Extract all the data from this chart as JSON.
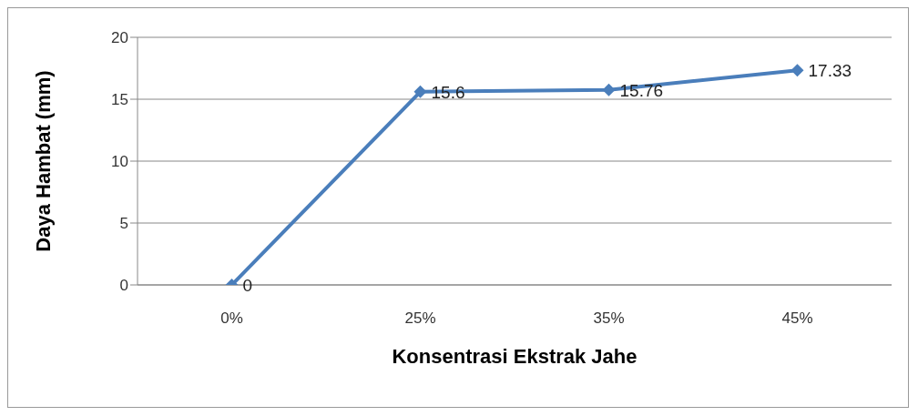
{
  "chart_data": {
    "type": "line",
    "xlabel": "Konsentrasi Ekstrak Jahe",
    "ylabel": "Daya Hambat (mm)",
    "categories": [
      "0%",
      "25%",
      "35%",
      "45%"
    ],
    "series": [
      {
        "color": "#4a7ebb",
        "values": [
          0,
          15.6,
          15.76,
          17.33
        ]
      }
    ],
    "ylim": [
      0,
      20
    ],
    "yticks": [
      0,
      5,
      10,
      15,
      20
    ],
    "grid": "y",
    "marker": "diamond",
    "line_style": "solid",
    "data_labels": true,
    "legend": false
  }
}
